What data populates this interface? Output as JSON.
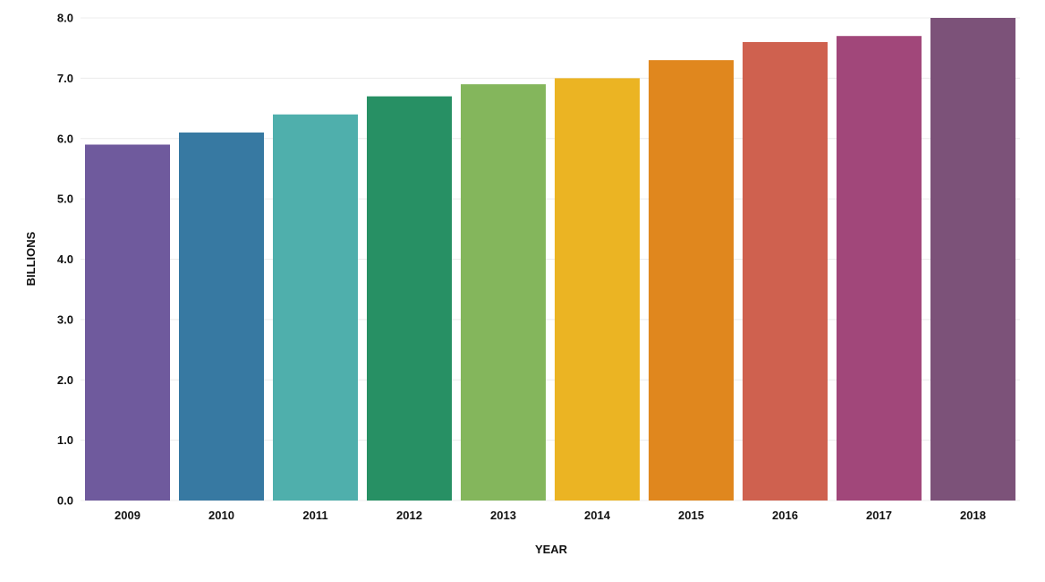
{
  "chart_data": {
    "type": "bar",
    "xlabel": "YEAR",
    "ylabel": "BILLIONS",
    "categories": [
      "2009",
      "2010",
      "2011",
      "2012",
      "2013",
      "2014",
      "2015",
      "2016",
      "2017",
      "2018"
    ],
    "values": [
      5.9,
      6.1,
      6.4,
      6.7,
      6.9,
      7.0,
      7.3,
      7.6,
      7.7,
      8.0
    ],
    "colors": [
      "#6f5a9d",
      "#3779a2",
      "#4fafac",
      "#279064",
      "#84b65c",
      "#ebb423",
      "#e0871e",
      "#cf614f",
      "#a1477a",
      "#7c5279"
    ],
    "ylim": [
      0,
      8
    ],
    "yticks": [
      "0.0",
      "1.0",
      "2.0",
      "3.0",
      "4.0",
      "5.0",
      "6.0",
      "7.0",
      "8.0"
    ],
    "grid": true,
    "legend": "none"
  }
}
